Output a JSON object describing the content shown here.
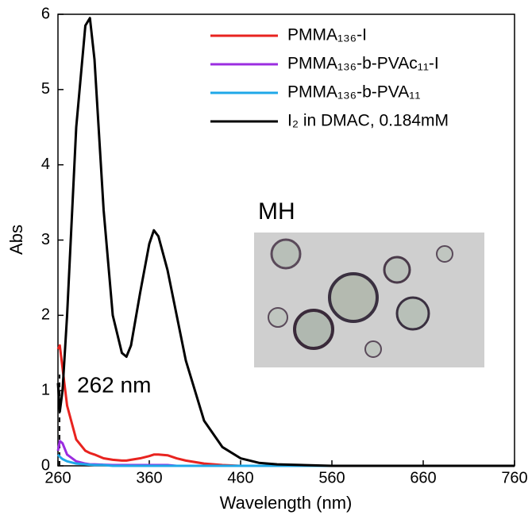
{
  "chart_data": {
    "type": "line",
    "xlabel": "Wavelength (nm)",
    "ylabel": "Abs",
    "x": [
      260,
      262,
      265,
      270,
      280,
      290,
      295,
      300,
      310,
      320,
      330,
      335,
      340,
      350,
      360,
      365,
      370,
      380,
      390,
      400,
      420,
      440,
      460,
      480,
      500,
      560,
      660,
      760
    ],
    "series": [
      {
        "name": "PMMA₁₃₆-I",
        "color": "#e8231f",
        "values": [
          1.55,
          1.6,
          1.3,
          0.8,
          0.35,
          0.2,
          0.17,
          0.15,
          0.1,
          0.08,
          0.07,
          0.07,
          0.08,
          0.1,
          0.13,
          0.15,
          0.15,
          0.14,
          0.1,
          0.07,
          0.03,
          0.01,
          0,
          0,
          0,
          0,
          0,
          0
        ]
      },
      {
        "name": "PMMA₁₃₆-b-PVAc₁₁-I",
        "color": "#9b2de0",
        "values": [
          0.2,
          0.33,
          0.3,
          0.15,
          0.06,
          0.03,
          0.02,
          0.02,
          0.015,
          0.01,
          0.01,
          0.01,
          0.01,
          0.01,
          0.01,
          0.01,
          0.01,
          0.01,
          0,
          0,
          0,
          0,
          0,
          0,
          0,
          0,
          0,
          0
        ]
      },
      {
        "name": "PMMA₁₃₆-b-PVA₁₁",
        "color": "#1fa8e8",
        "values": [
          0.15,
          0.12,
          0.09,
          0.06,
          0.03,
          0.02,
          0.015,
          0.01,
          0.01,
          0,
          0,
          0,
          0,
          0,
          0,
          0,
          0,
          0,
          0,
          0,
          0,
          0,
          0,
          0,
          0,
          0,
          0,
          0
        ]
      },
      {
        "name": "I₂ in DMAC, 0.184mM",
        "color": "#000000",
        "values": [
          1.1,
          0.72,
          1.0,
          2.0,
          4.5,
          5.85,
          5.95,
          5.4,
          3.4,
          2.0,
          1.5,
          1.45,
          1.6,
          2.3,
          2.95,
          3.13,
          3.05,
          2.6,
          2.0,
          1.4,
          0.6,
          0.25,
          0.1,
          0.04,
          0.02,
          0,
          0,
          0
        ]
      }
    ],
    "xlim": [
      260,
      760
    ],
    "xticks": [
      260,
      360,
      460,
      560,
      660,
      760
    ],
    "ylim": [
      0,
      6
    ],
    "yticks": [
      0,
      1,
      2,
      3,
      4,
      5,
      6
    ],
    "annotations": [
      "262 nm",
      "MH"
    ]
  }
}
